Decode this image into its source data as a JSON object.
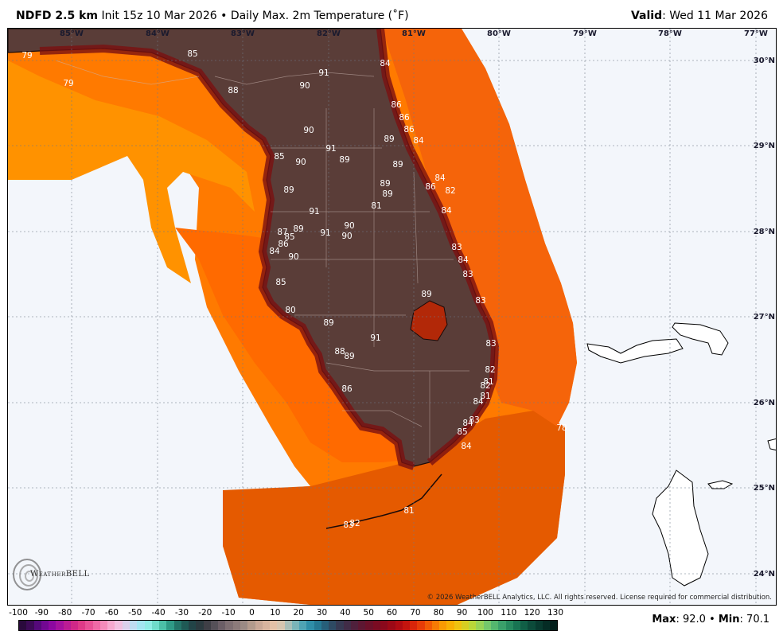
{
  "header": {
    "model": "NDFD 2.5 km",
    "init": "Init 15z 10 Mar 2026",
    "bullet": "•",
    "product": "Daily Max. 2m Temperature (˚F)",
    "valid_label": "Valid",
    "valid_value": ": Wed 11 Mar 2026"
  },
  "lon_labels": [
    "85°W",
    "84°W",
    "83°W",
    "82°W",
    "81°W",
    "80°W",
    "79°W",
    "78°W",
    "77°W"
  ],
  "lat_labels": [
    "30°N",
    "29°N",
    "28°N",
    "27°N",
    "26°N",
    "25°N",
    "24°N"
  ],
  "temps": [
    "79",
    "79",
    "85",
    "88",
    "90",
    "91",
    "84",
    "86",
    "86",
    "86",
    "84",
    "89",
    "90",
    "91",
    "89",
    "85",
    "90",
    "89",
    "84",
    "86",
    "82",
    "89",
    "89",
    "89",
    "81",
    "84",
    "91",
    "90",
    "89",
    "87",
    "85",
    "86",
    "84",
    "90",
    "90",
    "91",
    "83",
    "84",
    "83",
    "85",
    "89",
    "83",
    "80",
    "89",
    "91",
    "88",
    "89",
    "83",
    "82",
    "81",
    "82",
    "84",
    "81",
    "86",
    "83",
    "84",
    "85",
    "84",
    "78",
    "81",
    "83",
    "82"
  ],
  "colorbar": {
    "ticks": [
      "-100",
      "-90",
      "-80",
      "-70",
      "-60",
      "-50",
      "-40",
      "-30",
      "-20",
      "-10",
      "0",
      "10",
      "20",
      "30",
      "40",
      "50",
      "60",
      "70",
      "80",
      "90",
      "100",
      "110",
      "120",
      "130"
    ],
    "colors": [
      "#2a0a3c",
      "#3c0a55",
      "#55097a",
      "#720892",
      "#8c08a0",
      "#a4119e",
      "#bb1c94",
      "#d02888",
      "#df3a88",
      "#e85196",
      "#ef6aa6",
      "#f48bbb",
      "#f6a9cf",
      "#f2c0e0",
      "#dcd0ec",
      "#bfdcf2",
      "#a3e6f2",
      "#8fece6",
      "#6fdccb",
      "#4bbfa7",
      "#2f9a86",
      "#237468",
      "#1f5a55",
      "#224447",
      "#2b3a3f",
      "#3f3f46",
      "#555058",
      "#6b5e66",
      "#7e6e72",
      "#8c7a7a",
      "#9b8a84",
      "#b39a8c",
      "#c9a796",
      "#d8b39e",
      "#e3c1a7",
      "#d7c6b0",
      "#a9bfb8",
      "#7ab4b8",
      "#4fa3b4",
      "#2f8ea8",
      "#257893",
      "#275f7a",
      "#2e4a63",
      "#363952",
      "#412c47",
      "#4f203c",
      "#5d1732",
      "#6b1029",
      "#7a0b22",
      "#8a091c",
      "#9c0916",
      "#b00b12",
      "#c4140e",
      "#d8250a",
      "#e63c08",
      "#f05a05",
      "#f67a04",
      "#f99a03",
      "#f8b004",
      "#eec310",
      "#d6cf22",
      "#bad839",
      "#98d456",
      "#74c86c",
      "#54b66e",
      "#3aa06a",
      "#268a5e",
      "#187452",
      "#115f46",
      "#0c4b3a",
      "#083a2f",
      "#052c25",
      "#031f1b"
    ]
  },
  "copyright": "© 2026 WeatherBELL Analytics, LLC. All rights reserved. License required for commercial distribution.",
  "logo_text": "WeatherBELL",
  "stats": {
    "max_label": "Max",
    "max_value": ": 92.0",
    "bullet": "•",
    "min_label": "Min",
    "min_value": ": 70.1"
  }
}
